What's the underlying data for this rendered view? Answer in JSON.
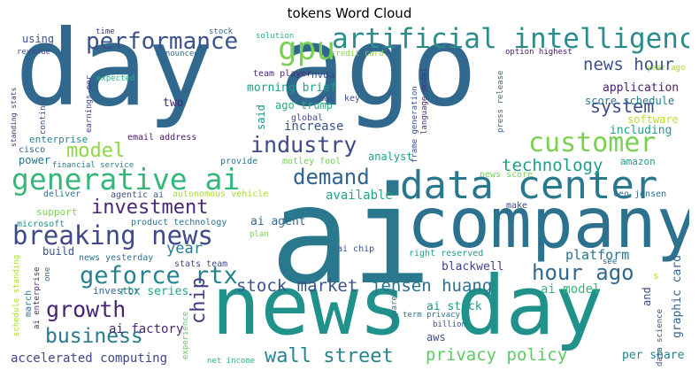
{
  "title": "tokens Word Cloud",
  "words": [
    {
      "text": "ai",
      "color": "#2a788e"
    },
    {
      "text": "day ago",
      "color": "#31688e"
    },
    {
      "text": "news day",
      "color": "#21918c"
    },
    {
      "text": "company",
      "color": "#2c728e"
    },
    {
      "text": "data center",
      "color": "#2a788e"
    },
    {
      "text": "artificial intelligence",
      "color": "#2c8c8c"
    },
    {
      "text": "generative ai",
      "color": "#35b779"
    },
    {
      "text": "breaking news",
      "color": "#3e4a89"
    },
    {
      "text": "gpu",
      "color": "#7ad151"
    },
    {
      "text": "performance",
      "color": "#3b528b"
    },
    {
      "text": "customer",
      "color": "#7ad151"
    },
    {
      "text": "industry",
      "color": "#3e4a89"
    },
    {
      "text": "model",
      "color": "#8fd744"
    },
    {
      "text": "demand",
      "color": "#33638d"
    },
    {
      "text": "investment",
      "color": "#482878"
    },
    {
      "text": "geforce rtx",
      "color": "#26828e"
    },
    {
      "text": "growth",
      "color": "#482475"
    },
    {
      "text": "business",
      "color": "#2a788e"
    },
    {
      "text": "chip",
      "color": "#443a83"
    },
    {
      "text": "hour ago",
      "color": "#31688e"
    },
    {
      "text": "technology",
      "color": "#1f9e89"
    },
    {
      "text": "system",
      "color": "#3e4a89"
    },
    {
      "text": "news hour",
      "color": "#3b528b"
    },
    {
      "text": "stock market",
      "color": "#3b528b"
    },
    {
      "text": "jensen huang",
      "color": "#2c728e"
    },
    {
      "text": "wall street",
      "color": "#25848e"
    },
    {
      "text": "privacy policy",
      "color": "#5ec962"
    },
    {
      "text": "accelerated computing",
      "color": "#404688"
    },
    {
      "text": "year",
      "color": "#287c8e"
    },
    {
      "text": "ai agent",
      "color": "#31688e"
    },
    {
      "text": "available",
      "color": "#20a386"
    },
    {
      "text": "platform",
      "color": "#2c728e"
    },
    {
      "text": "ai model",
      "color": "#35b779"
    },
    {
      "text": "blackwell",
      "color": "#414487"
    },
    {
      "text": "rtx series",
      "color": "#22a785"
    },
    {
      "text": "ai factory",
      "color": "#482878"
    },
    {
      "text": "ai stock",
      "color": "#1f9a8a"
    },
    {
      "text": "aws",
      "color": "#3b528b"
    },
    {
      "text": "morning brief",
      "color": "#1f9e89"
    },
    {
      "text": "ago trump",
      "color": "#28ae80"
    },
    {
      "text": "increase",
      "color": "#3b528b"
    },
    {
      "text": "score schedule",
      "color": "#2a788e"
    },
    {
      "text": "application",
      "color": "#481f70"
    },
    {
      "text": "software",
      "color": "#bddf26"
    },
    {
      "text": "including",
      "color": "#1f9e89"
    },
    {
      "text": "analyst",
      "color": "#1fa188"
    },
    {
      "text": "enterprise",
      "color": "#26828e"
    },
    {
      "text": "power",
      "color": "#2c728e"
    },
    {
      "text": "amazon",
      "color": "#1f9a8a"
    },
    {
      "text": "support",
      "color": "#7ad151"
    },
    {
      "text": "build",
      "color": "#3b528b"
    },
    {
      "text": "investor",
      "color": "#33638d"
    },
    {
      "text": "per share",
      "color": "#26828e"
    },
    {
      "text": "graphic card",
      "color": "#33638d"
    },
    {
      "text": "and",
      "color": "#3e4a89"
    },
    {
      "text": "using",
      "color": "#3b528b"
    },
    {
      "text": "two",
      "color": "#482475"
    },
    {
      "text": "nvda",
      "color": "#3e4a89"
    },
    {
      "text": "said",
      "color": "#21918c"
    },
    {
      "text": "team player",
      "color": "#482878"
    },
    {
      "text": "email address",
      "color": "#481668"
    },
    {
      "text": "cisco",
      "color": "#33638d"
    },
    {
      "text": "financial service",
      "color": "#287c8e"
    },
    {
      "text": "provide",
      "color": "#2c728e"
    },
    {
      "text": "motley fool",
      "color": "#73d056"
    },
    {
      "text": "deliver",
      "color": "#2c728e"
    },
    {
      "text": "agentic ai",
      "color": "#3b528b"
    },
    {
      "text": "autonomous vehicle",
      "color": "#a5db36"
    },
    {
      "text": "product technology",
      "color": "#2c728e"
    },
    {
      "text": "microsoft",
      "color": "#21918c"
    },
    {
      "text": "news yesterday",
      "color": "#2c728e"
    },
    {
      "text": "stats team",
      "color": "#3e4a89"
    },
    {
      "text": "ai chip",
      "color": "#3b528b"
    },
    {
      "text": "right reserved",
      "color": "#1f9a8a"
    },
    {
      "text": "news score",
      "color": "#75d054"
    },
    {
      "text": "ceo jensen",
      "color": "#31688e"
    },
    {
      "text": "make",
      "color": "#3e4a89"
    },
    {
      "text": "global",
      "color": "#3e4a89"
    },
    {
      "text": "key",
      "color": "#3b528b"
    },
    {
      "text": "may",
      "color": "#3b528b"
    },
    {
      "text": "time",
      "color": "#46337e"
    },
    {
      "text": "stock",
      "color": "#31688e"
    },
    {
      "text": "solution",
      "color": "#29af7f"
    },
    {
      "text": "announced",
      "color": "#31688e"
    },
    {
      "text": "credit card",
      "color": "#8fd744"
    },
    {
      "text": "revenue",
      "color": "#3e4a89"
    },
    {
      "text": "expected",
      "color": "#29af7f"
    },
    {
      "text": "option highest",
      "color": "#481668"
    },
    {
      "text": "year ago",
      "color": "#a0da39"
    },
    {
      "text": "net income",
      "color": "#2db27d"
    },
    {
      "text": "term privacy",
      "color": "#2c728e"
    },
    {
      "text": "billion",
      "color": "#3b528b"
    },
    {
      "text": "compared",
      "color": "#2c728e"
    },
    {
      "text": "see",
      "color": "#33638d"
    },
    {
      "text": "plan",
      "color": "#7ad151"
    },
    {
      "text": "march",
      "color": "#2c728e"
    },
    {
      "text": "one",
      "color": "#31688e"
    },
    {
      "text": "ai enterprise",
      "color": "#482878"
    },
    {
      "text": "schedule standing",
      "color": "#addc30"
    },
    {
      "text": "experience",
      "color": "#5ec962"
    },
    {
      "text": "data science",
      "color": "#3b528b"
    },
    {
      "text": "standing stats",
      "color": "#482878"
    },
    {
      "text": "continue",
      "color": "#3b528b"
    },
    {
      "text": "earnings per",
      "color": "#3e4a89"
    },
    {
      "text": "frame generation",
      "color": "#3b528b"
    },
    {
      "text": "language model",
      "color": "#472d7b"
    },
    {
      "text": "press release",
      "color": "#31688e"
    },
    {
      "text": "s",
      "color": "#bddf26"
    }
  ]
}
